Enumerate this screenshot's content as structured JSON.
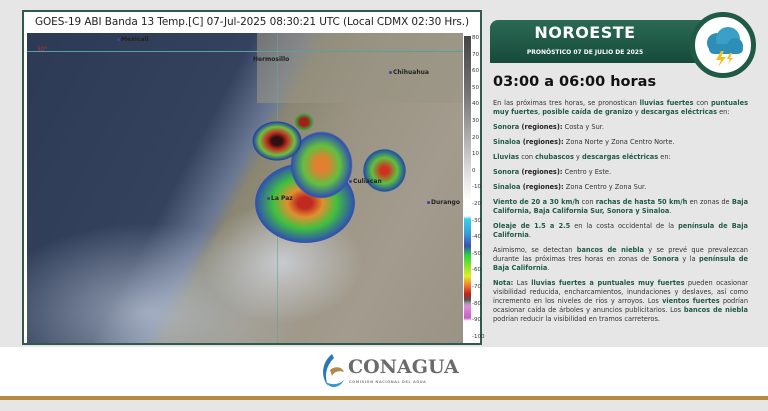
{
  "satellite": {
    "title": "GOES-19 ABI Banda 13 Temp.[C] 07-Jul-2025 08:30:21 UTC (Local CDMX  02:30 Hrs.)",
    "lat_label": "30°",
    "cities": [
      "Mexicali",
      "Hermosillo",
      "Chihuahua",
      "Culiacan",
      "La Paz",
      "Durango"
    ],
    "colorbar_ticks": [
      "80",
      "70",
      "60",
      "50",
      "40",
      "30",
      "20",
      "10",
      "0",
      "-10",
      "-20",
      "-30",
      "-40",
      "-50",
      "-60",
      "-70",
      "-80",
      "-90",
      "-100"
    ]
  },
  "header": {
    "region": "NOROESTE",
    "subtitle": "PRONÓSTICO 07 DE JULIO DE 2025",
    "icon": "storm-cloud-lightning-icon"
  },
  "hours": "03:00 a 06:00 horas",
  "paragraphs": [
    [
      [
        "n",
        "En las próximas tres horas, se pronostican "
      ],
      [
        "g",
        "lluvias fuertes"
      ],
      [
        "n",
        " con "
      ],
      [
        "g",
        "puntuales muy fuertes"
      ],
      [
        "n",
        ", "
      ],
      [
        "g",
        "posible caída de granizo"
      ],
      [
        "n",
        " y "
      ],
      [
        "g",
        "descargas eléctricas"
      ],
      [
        "n",
        " en:"
      ]
    ],
    [
      [
        "g",
        "Sonora "
      ],
      [
        "b",
        "(regiones):"
      ],
      [
        "n",
        " Costa y Sur."
      ]
    ],
    [
      [
        "g",
        "Sinaloa "
      ],
      [
        "b",
        "(regiones):"
      ],
      [
        "n",
        " Zona Norte y Zona Centro Norte."
      ]
    ],
    [
      [
        "g",
        "Lluvias"
      ],
      [
        "n",
        " con "
      ],
      [
        "g",
        "chubascos"
      ],
      [
        "n",
        " y "
      ],
      [
        "g",
        "descargas eléctricas"
      ],
      [
        "n",
        " en:"
      ]
    ],
    [
      [
        "g",
        "Sonora "
      ],
      [
        "b",
        "(regiones):"
      ],
      [
        "n",
        " Centro y Este."
      ]
    ],
    [
      [
        "g",
        "Sinaloa "
      ],
      [
        "b",
        "(regiones):"
      ],
      [
        "n",
        " Zona Centro y Zona Sur."
      ]
    ],
    [
      [
        "g",
        "Viento de 20 a 30 km/h"
      ],
      [
        "n",
        " con "
      ],
      [
        "g",
        "rachas de hasta 50 km/h"
      ],
      [
        "n",
        " en zonas de "
      ],
      [
        "g",
        "Baja California, Baja California Sur, Sonora y Sinaloa"
      ],
      [
        "n",
        "."
      ]
    ],
    [
      [
        "g",
        "Oleaje de 1.5 a 2.5"
      ],
      [
        "n",
        " en la costa occidental de la "
      ],
      [
        "g",
        "península de Baja California"
      ],
      [
        "n",
        "."
      ]
    ],
    [
      [
        "n",
        "Asimismo, se detectan "
      ],
      [
        "g",
        "bancos de  niebla"
      ],
      [
        "n",
        " y se prevé que prevalezcan durante las próximas tres horas en zonas de "
      ],
      [
        "g",
        "Sonora"
      ],
      [
        "n",
        " y la "
      ],
      [
        "g",
        "península de Baja California"
      ],
      [
        "n",
        "."
      ]
    ],
    [
      [
        "g",
        "Nota:"
      ],
      [
        "n",
        " Las "
      ],
      [
        "g",
        "lluvias fuertes a puntuales muy fuertes"
      ],
      [
        "n",
        " pueden ocasionar visibilidad reducida, encharcamientos, inundaciones y deslaves, así como incremento en los niveles de ríos y arroyos. Los "
      ],
      [
        "g",
        "vientos fuertes"
      ],
      [
        "n",
        " podrían ocasionar caída de árboles y anuncios publicitarios. Los "
      ],
      [
        "g",
        "bancos de niebla"
      ],
      [
        "n",
        " podrían reducir la visibilidad en tramos carreteros."
      ]
    ]
  ],
  "footer": {
    "logo": "CONAGUA",
    "logo_sub": "COMISIÓN NACIONAL DEL AGUA"
  },
  "colors": {
    "green": "#1f5a47",
    "gold": "#b58a45"
  }
}
